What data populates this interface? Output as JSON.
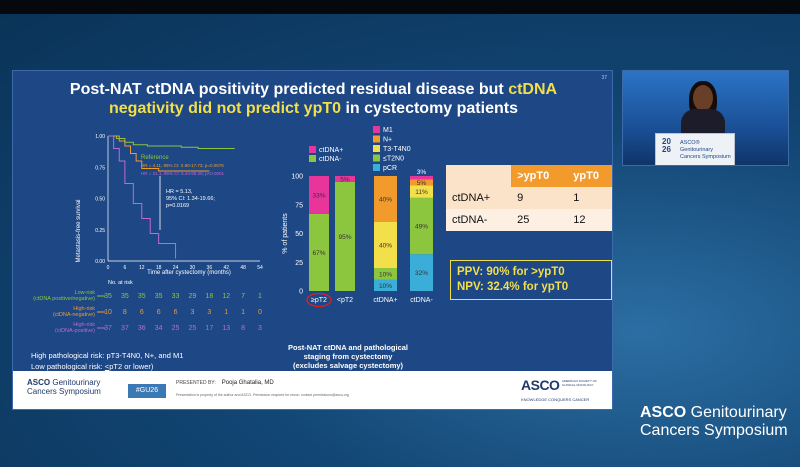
{
  "slide": {
    "number": "37",
    "title_line1_white": "Post-NAT ctDNA positivity predicted residual disease but ",
    "title_line1_yellow": "ctDNA",
    "title_line2_yellow": "negativity did not predict ypT0",
    "title_line2_white": " in cystectomy patients"
  },
  "km_chart": {
    "type": "line",
    "ylabel": "Metastasis-free survival",
    "xlabel": "Time after cystectomy (months)",
    "yticks": [
      "0.00",
      "0.25",
      "0.50",
      "0.75",
      "1.00"
    ],
    "xticks": [
      "0",
      "6",
      "12",
      "18",
      "24",
      "30",
      "36",
      "42",
      "48",
      "54"
    ],
    "reference_label": "Reference",
    "hr_line1": "HR = 4.11, 95% CI: 0.90-17.73; p=0.0576",
    "hr_line2": "HR = 21.1, 95% CI: 5.44-68.29; p<0.0001",
    "hr_box_1": "HR = 5.13,",
    "hr_box_2": "95% CI: 1.34-19.66;",
    "hr_box_3": "p=0.0169",
    "colors": {
      "low": "#8cc63f",
      "high_neg": "#f39a2e",
      "high_pos": "#c06bd1"
    },
    "series": [
      {
        "name": "Low-risk (ctDNA positive/negative)",
        "points": [
          [
            0,
            1.0
          ],
          [
            3,
            0.98
          ],
          [
            6,
            0.95
          ],
          [
            9,
            0.93
          ],
          [
            14,
            0.92
          ],
          [
            20,
            0.92
          ],
          [
            26,
            0.91
          ],
          [
            32,
            0.9
          ],
          [
            45,
            0.9
          ]
        ]
      },
      {
        "name": "High-risk (ctDNA-negative)",
        "points": [
          [
            0,
            1.0
          ],
          [
            4,
            0.96
          ],
          [
            6,
            0.92
          ],
          [
            8,
            0.86
          ],
          [
            10,
            0.8
          ],
          [
            12,
            0.74
          ],
          [
            18,
            0.72
          ],
          [
            30,
            0.72
          ],
          [
            36,
            0.72
          ]
        ]
      },
      {
        "name": "High-risk (ctDNA-positive)",
        "points": [
          [
            0,
            1.0
          ],
          [
            2,
            0.9
          ],
          [
            4,
            0.8
          ],
          [
            6,
            0.62
          ],
          [
            9,
            0.46
          ],
          [
            12,
            0.34
          ],
          [
            15,
            0.22
          ],
          [
            18,
            0.14
          ],
          [
            24,
            0.14
          ],
          [
            24,
            0.02
          ]
        ]
      }
    ]
  },
  "at_risk": {
    "header": "No. at risk",
    "rows": [
      {
        "label1": "Low-risk",
        "label2": "(ctDNA positive/negative)",
        "color": "#8cc63f",
        "values": [
          "35",
          "35",
          "35",
          "35",
          "33",
          "29",
          "18",
          "12",
          "7",
          "1"
        ]
      },
      {
        "label1": "High-risk",
        "label2": "(ctDNA-negative)",
        "color": "#f39a2e",
        "values": [
          "10",
          "8",
          "6",
          "6",
          "6",
          "3",
          "3",
          "1",
          "1",
          "0"
        ]
      },
      {
        "label1": "High-risk",
        "label2": "(ctDNA-positive)",
        "color": "#c06bd1",
        "values": [
          "37",
          "37",
          "36",
          "34",
          "25",
          "25",
          "17",
          "13",
          "8",
          "3"
        ]
      }
    ]
  },
  "risk_note": {
    "high": "High pathological risk: pT3-T4N0, N+, and M1",
    "low_prefix": "Low pathological risk: ",
    "low_emph": "<",
    "low_suffix": "pT2 or lower)"
  },
  "bar_chart_1": {
    "type": "bar",
    "ylabel": "% of patients",
    "yticks": [
      "0",
      "25",
      "50",
      "75",
      "100"
    ],
    "legend": [
      {
        "label": "ctDNA+",
        "color": "#e8359c"
      },
      {
        "label": "ctDNA-",
        "color": "#8cc63f"
      }
    ],
    "categories": [
      "≥pT2",
      "<pT2"
    ],
    "series": [
      {
        "name": "ctDNA+",
        "color": "#e8359c",
        "values": [
          33,
          5
        ]
      },
      {
        "name": "ctDNA-",
        "color": "#8cc63f",
        "values": [
          67,
          95
        ]
      }
    ],
    "labels": [
      [
        "33%",
        "67%"
      ],
      [
        "5%",
        "95%"
      ]
    ]
  },
  "bar_chart_2": {
    "type": "bar",
    "legend": [
      {
        "label": "M1",
        "color": "#e8359c"
      },
      {
        "label": "N+",
        "color": "#f29b2c"
      },
      {
        "label": "T3-T4N0",
        "color": "#f3df4a"
      },
      {
        "label": "≤T2N0",
        "color": "#8cc63f"
      },
      {
        "label": "pCR",
        "color": "#3aaed8"
      }
    ],
    "categories": [
      "ctDNA+",
      "ctDNA-"
    ],
    "series": [
      {
        "name": "pCR",
        "color": "#3aaed8",
        "values": [
          10,
          32
        ]
      },
      {
        "name": "≤T2N0",
        "color": "#8cc63f",
        "values": [
          10,
          49
        ]
      },
      {
        "name": "T3-T4N0",
        "color": "#f3df4a",
        "values": [
          40,
          11
        ]
      },
      {
        "name": "N+",
        "color": "#f29b2c",
        "values": [
          40,
          5
        ]
      },
      {
        "name": "M1",
        "color": "#e8359c",
        "values": [
          0,
          3
        ]
      }
    ],
    "labels": [
      [
        "10%",
        "10%",
        "40%",
        "40%",
        ""
      ],
      [
        "32%",
        "49%",
        "11%",
        "5%",
        "3%"
      ]
    ]
  },
  "caption": {
    "line1": "Post-NAT ctDNA and pathological",
    "line2": "staging from cystectomy",
    "line3": "(excludes salvage cystectomy)"
  },
  "table": {
    "headers": [
      "",
      ">ypT0",
      "ypT0"
    ],
    "rows": [
      [
        "ctDNA+",
        "9",
        "1"
      ],
      [
        "ctDNA-",
        "25",
        "12"
      ]
    ]
  },
  "ppv": {
    "line1": "PPV: 90% for >ypT0",
    "line2": "NPV: 32.4% for ypT0"
  },
  "footer": {
    "asco1": "ASCO",
    "asco2": " Genitourinary",
    "asco3": "Cancers Symposium",
    "hashtag": "#GU26",
    "presented_by": "PRESENTED BY:",
    "presenter": "Pooja Ghatalia, MD",
    "notice": "Presentation is property of the author and ASCO. Permission required for reuse; contact permissions@asco.org",
    "logo": "ASCO",
    "logo_small": "AMERICAN SOCIETY OF CLINICAL ONCOLOGY",
    "logo_tag": "KNOWLEDGE CONQUERS CANCER"
  },
  "podium": {
    "year": "20 26",
    "line1": "ASCO® Genitourinary",
    "line2": "Cancers Symposium"
  },
  "brand": {
    "line1a": "ASCO",
    "line1b": " Genitourinary",
    "line2": "Cancers Symposium"
  }
}
